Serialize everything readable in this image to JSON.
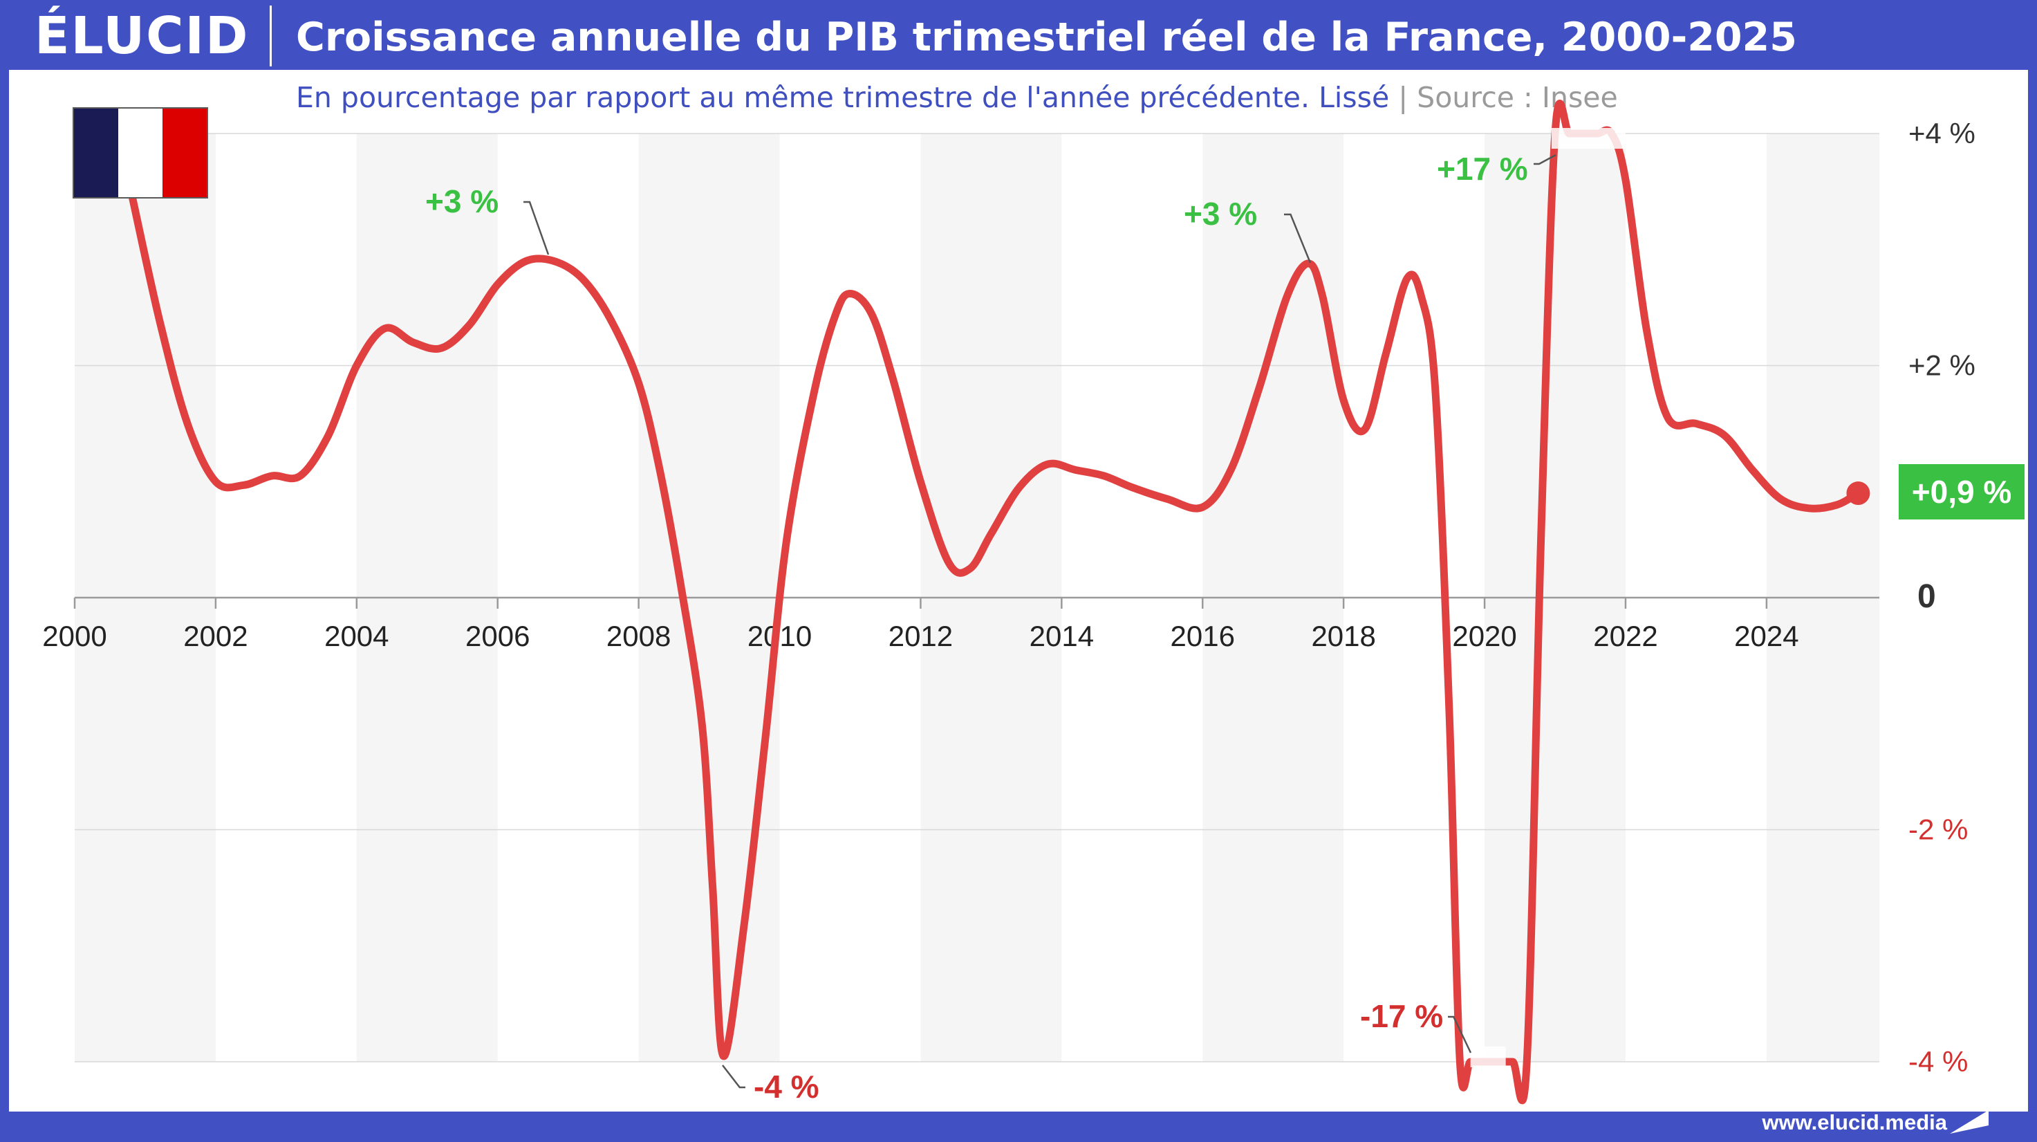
{
  "header": {
    "logo": "ÉLUCID",
    "title": "Croissance annuelle du PIB trimestriel réel de la France, 2000-2025"
  },
  "subtitle": {
    "text": "En pourcentage par rapport au même trimestre de l'année précédente. Lissé",
    "separator": "|",
    "source": "Source : Insee"
  },
  "flag": {
    "colors": [
      "#1a1a55",
      "#ffffff",
      "#dd0000"
    ]
  },
  "footer": {
    "url": "www.elucid.media"
  },
  "colors": {
    "frame": "#4151c4",
    "line": "#e04040",
    "positive": "#3ac043",
    "negative": "#d42f2f",
    "band": "#f5f5f5"
  },
  "chart_data": {
    "type": "line",
    "xlim": [
      2000,
      2025.6
    ],
    "ylim": [
      -4,
      4
    ],
    "x_ticks": [
      2000,
      2002,
      2004,
      2006,
      2008,
      2010,
      2012,
      2014,
      2016,
      2018,
      2020,
      2022,
      2024
    ],
    "x_tick_labels": [
      "2000",
      "2002",
      "2004",
      "2006",
      "2008",
      "2010",
      "2012",
      "2014",
      "2016",
      "2018",
      "2020",
      "2022",
      "2024"
    ],
    "y_ticks": [
      4,
      2,
      0,
      -2,
      -4
    ],
    "y_tick_labels": [
      "+4 %",
      "+2 %",
      "0",
      "-2 %",
      "-4 %"
    ],
    "grid": true,
    "series": [
      {
        "x": [
          2000.8,
          2001.2,
          2001.6,
          2002.0,
          2002.4,
          2002.8,
          2003.2,
          2003.6,
          2004.0,
          2004.4,
          2004.8,
          2005.2,
          2005.6,
          2006.0,
          2006.4,
          2006.8,
          2007.2,
          2007.6,
          2008.0,
          2008.3,
          2008.6,
          2008.9,
          2009.05,
          2009.2,
          2009.5,
          2009.8,
          2010.1,
          2010.5,
          2010.8,
          2011.0,
          2011.3,
          2011.6,
          2012.0,
          2012.4,
          2012.7,
          2013.0,
          2013.4,
          2013.8,
          2014.2,
          2014.6,
          2015.0,
          2015.5,
          2016.0,
          2016.4,
          2016.8,
          2017.2,
          2017.5,
          2017.7,
          2018.0,
          2018.3,
          2018.6,
          2018.9,
          2019.1,
          2019.3,
          2019.5,
          2019.65,
          2019.8,
          2020.0,
          2020.2,
          2020.4,
          2020.6,
          2020.8,
          2021.0,
          2021.2,
          2021.4,
          2021.6,
          2021.8,
          2022.0,
          2022.3,
          2022.6,
          2023.0,
          2023.4,
          2023.8,
          2024.2,
          2024.6,
          2025.0,
          2025.3
        ],
        "y": [
          3.5,
          2.4,
          1.5,
          1.0,
          0.97,
          1.05,
          1.05,
          1.4,
          2.0,
          2.32,
          2.2,
          2.15,
          2.35,
          2.7,
          2.9,
          2.9,
          2.75,
          2.4,
          1.85,
          1.1,
          0.1,
          -1.1,
          -2.5,
          -3.95,
          -2.8,
          -1.2,
          0.5,
          1.8,
          2.45,
          2.62,
          2.45,
          1.9,
          1.0,
          0.3,
          0.25,
          0.55,
          0.95,
          1.15,
          1.1,
          1.05,
          0.95,
          0.85,
          0.78,
          1.1,
          1.8,
          2.6,
          2.88,
          2.6,
          1.7,
          1.45,
          2.1,
          2.75,
          2.6,
          1.8,
          -1.0,
          -4.0,
          -4.0,
          -4.0,
          -4.0,
          -4.0,
          -4.0,
          0.5,
          4.0,
          4.0,
          4.0,
          4.0,
          4.0,
          3.6,
          2.3,
          1.55,
          1.5,
          1.4,
          1.1,
          0.85,
          0.77,
          0.8,
          0.9
        ]
      }
    ],
    "annotations": [
      {
        "text": "+3 %",
        "x": 2006.6,
        "y": 2.95
      },
      {
        "text": "+3 %",
        "x": 2017.6,
        "y": 2.9
      },
      {
        "text": "+17 %",
        "x": 2020.95,
        "y": 3.7
      },
      {
        "text": "-4 %",
        "x": 2009.2,
        "y": -4.0
      },
      {
        "text": "-17 %",
        "x": 2019.8,
        "y": -3.95
      }
    ],
    "last_value": {
      "x": 2025.3,
      "y": 0.9,
      "text": "+0,9 %"
    }
  }
}
